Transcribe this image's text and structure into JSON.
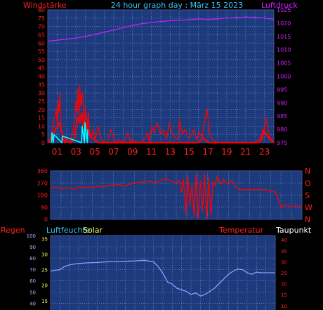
{
  "chart_data": [
    {
      "type": "line",
      "title": "24 hour graph day : März 15 2023",
      "left_axis_label": "Windstärke",
      "right_axis_label": "Luftdruck",
      "left_ticks": [
        0,
        5,
        10,
        15,
        20,
        25,
        30,
        35,
        40,
        45,
        50,
        55,
        60,
        65,
        70,
        75,
        80
      ],
      "right_ticks": [
        975,
        980,
        985,
        990,
        995,
        1000,
        1005,
        1010,
        1015,
        1020,
        1025
      ],
      "left_range": [
        0,
        80
      ],
      "right_range": [
        975,
        1025
      ],
      "x_range": [
        0,
        24
      ],
      "x_ticks": [
        "01",
        "03",
        "05",
        "07",
        "09",
        "11",
        "13",
        "15",
        "17",
        "19",
        "21",
        "23"
      ],
      "x_tick_hours": [
        1,
        3,
        5,
        7,
        9,
        11,
        13,
        15,
        17,
        19,
        21,
        23
      ],
      "grid": true,
      "colors": {
        "background": "#1c3a7c",
        "grid": "#7d92c8",
        "frame": "#4a4f8e",
        "wind": "#ff0000",
        "gust": "#ff0000",
        "calm": "#00ffff",
        "pressure": "#d020ff",
        "left_label": "#ff2020",
        "right_label": "#d020ff",
        "title": "#30c8ff",
        "tick_right": "#d020ff",
        "x_tick": "#ff2020"
      },
      "series": [
        {
          "role": "pressure",
          "axis": "right",
          "x": [
            0,
            1,
            2,
            3,
            4,
            5,
            6,
            7,
            8,
            9,
            10,
            11,
            12,
            13,
            14,
            15,
            16,
            17,
            18,
            19,
            20,
            21,
            22,
            23,
            24
          ],
          "y": [
            1013.2,
            1013.6,
            1014,
            1014.4,
            1015,
            1015.8,
            1016.6,
            1017.4,
            1018.3,
            1019.2,
            1019.8,
            1020.2,
            1020.6,
            1020.9,
            1021.1,
            1021.3,
            1021.6,
            1021.4,
            1021.6,
            1021.9,
            1022.1,
            1022.3,
            1022.2,
            1021.9,
            1021.4
          ]
        },
        {
          "role": "gust",
          "axis": "left",
          "x": [
            0,
            0.3,
            0.5,
            0.7,
            0.9,
            1.0,
            1.1,
            1.2,
            1.3,
            1.4,
            1.5,
            1.6,
            1.8,
            2.0,
            2.2,
            2.4,
            2.6,
            2.8,
            2.9,
            3.0,
            3.1,
            3.2,
            3.3,
            3.4,
            3.5,
            3.6,
            3.7,
            3.8,
            3.9,
            4.0,
            4.1,
            4.2,
            4.3,
            4.4,
            4.5,
            4.6,
            4.8,
            5.0,
            5.2,
            5.4,
            5.6,
            6.0,
            6.3,
            6.5,
            6.7,
            7.0,
            7.2,
            7.5,
            8.0,
            8.3,
            8.5,
            8.8,
            9.0,
            9.5,
            10.0,
            10.3,
            10.6,
            10.8,
            11.0,
            11.3,
            11.6,
            12.0,
            12.3,
            12.6,
            12.9,
            13.2,
            13.5,
            13.8,
            14.0,
            14.3,
            14.6,
            14.9,
            15.2,
            15.5,
            15.8,
            16.1,
            16.4,
            16.6,
            16.9,
            17.2,
            17.5,
            18.0,
            19.0,
            20.0,
            21.0,
            22.0,
            22.5,
            22.8,
            23.0,
            23.2,
            23.4,
            23.6,
            24.0
          ],
          "y": [
            0,
            3,
            8,
            15,
            20,
            12,
            25,
            18,
            30,
            10,
            6,
            2,
            0,
            3,
            0,
            0,
            5,
            12,
            20,
            25,
            18,
            32,
            15,
            35,
            22,
            28,
            30,
            18,
            12,
            22,
            15,
            8,
            18,
            10,
            5,
            3,
            8,
            2,
            6,
            10,
            3,
            0,
            0,
            4,
            8,
            3,
            0,
            2,
            0,
            3,
            6,
            0,
            2,
            0,
            0,
            3,
            6,
            0,
            10,
            6,
            12,
            5,
            8,
            2,
            12,
            6,
            3,
            2,
            14,
            5,
            8,
            3,
            4,
            8,
            2,
            6,
            3,
            12,
            20,
            5,
            2,
            0,
            0,
            0,
            0,
            0,
            0,
            3,
            8,
            15,
            7,
            3,
            0
          ]
        },
        {
          "role": "wind",
          "axis": "left",
          "x": [
            0,
            0.5,
            0.8,
            1.0,
            1.2,
            1.4,
            1.6,
            1.8,
            2.0,
            2.4,
            2.8,
            3.0,
            3.2,
            3.4,
            3.6,
            3.8,
            4.0,
            4.2,
            4.4,
            4.6,
            5.0,
            5.4,
            6.0,
            7.0,
            8.0,
            9.0,
            10.0,
            11.0,
            12.0,
            13.0,
            14.0,
            15.0,
            16.0,
            16.5,
            17.0,
            18.0,
            20.0,
            22.0,
            22.6,
            22.9,
            23.2,
            23.6,
            24.0
          ],
          "y": [
            0,
            3,
            8,
            10,
            12,
            8,
            4,
            0,
            1,
            0,
            2,
            10,
            15,
            12,
            18,
            10,
            12,
            8,
            5,
            3,
            2,
            0,
            0,
            0,
            0,
            0,
            0,
            0,
            0,
            0,
            0,
            0,
            0,
            3,
            0,
            0,
            0,
            0,
            2,
            8,
            5,
            2,
            0
          ]
        },
        {
          "role": "calm",
          "axis": "left",
          "x": [
            0.4,
            0.45,
            0.6,
            0.65,
            1.5,
            1.55,
            3.6,
            3.65,
            3.9,
            3.95,
            4.2,
            4.25
          ],
          "y": [
            0,
            6,
            0,
            5,
            0,
            4,
            0,
            10,
            0,
            12,
            0,
            8
          ]
        }
      ]
    },
    {
      "type": "line",
      "left_ticks": [
        0,
        90,
        180,
        270,
        360
      ],
      "left_tick_labels": [
        "0",
        "90",
        "180",
        "270",
        "360"
      ],
      "left_range": [
        0,
        360
      ],
      "right_labels": [
        "N",
        "W",
        "S",
        "O",
        "N"
      ],
      "x_range": [
        0,
        24
      ],
      "grid": true,
      "colors": {
        "background": "#1c3a7c",
        "grid": "#7d92c8",
        "frame": "#4a4f8e",
        "direction": "#ff0000",
        "tick": "#ff2020",
        "right_label": "#ff2020"
      },
      "series": [
        {
          "role": "direction",
          "x": [
            0,
            0.5,
            1.0,
            1.5,
            2.0,
            2.3,
            2.6,
            3.0,
            3.5,
            4.0,
            4.5,
            5.0,
            5.5,
            6.0,
            6.5,
            7.0,
            7.5,
            8.0,
            8.5,
            9.0,
            9.5,
            10.0,
            10.5,
            11.0,
            11.5,
            12.0,
            12.3,
            12.5,
            12.7,
            12.9,
            13.1,
            13.3,
            13.5,
            13.7,
            13.9,
            14.1,
            14.3,
            14.5,
            14.7,
            14.9,
            15.1,
            15.3,
            15.5,
            15.7,
            15.9,
            16.1,
            16.3,
            16.5,
            16.7,
            17.0,
            17.3,
            17.6,
            18.0,
            18.5,
            19.0,
            19.5,
            20.0,
            20.5,
            21.0,
            21.5,
            22.0,
            22.5,
            23.0,
            23.5,
            24.0
          ],
          "y": [
            230,
            240,
            225,
            235,
            230,
            220,
            240,
            235,
            240,
            235,
            245,
            240,
            250,
            255,
            260,
            245,
            260,
            270,
            275,
            285,
            280,
            270,
            290,
            300,
            285,
            270,
            290,
            200,
            300,
            40,
            320,
            100,
            260,
            20,
            330,
            10,
            290,
            60,
            340,
            0,
            310,
            30,
            280,
            250,
            320,
            290,
            260,
            300,
            270,
            270,
            290,
            250,
            220,
            220,
            220,
            220,
            220,
            220,
            210,
            200,
            90,
            110,
            90,
            100,
            90
          ]
        }
      ]
    },
    {
      "type": "line",
      "left_axis_label": "Regen",
      "hum_label": "Luftfeuchte",
      "solar_label": "Solar",
      "temp_label": "Temperatur",
      "dew_label": "Taupunkt",
      "left_ticks": [
        40,
        50,
        60,
        70,
        80,
        90,
        100
      ],
      "left_range": [
        34,
        100
      ],
      "inner_ticks": [
        15,
        20,
        25,
        30,
        35
      ],
      "inner_range": [
        12,
        36
      ],
      "right_ticks": [
        10,
        15,
        20,
        25,
        30,
        35,
        40
      ],
      "right_range": [
        8,
        42
      ],
      "x_range": [
        0,
        24
      ],
      "grid": true,
      "colors": {
        "background": "#1c3a7c",
        "grid": "#7d92c8",
        "frame": "#4a4f8e",
        "temperature": "#9999ff",
        "regen_label": "#ff2020",
        "hum_label": "#30c8ff",
        "solar_label": "#ffff60",
        "temp_label": "#ff2020",
        "dew_label": "#ffffff",
        "left_tick": "#b0b0ff",
        "inner_tick": "#ffff60",
        "right_tick": "#ff2020"
      },
      "series": [
        {
          "role": "temperature",
          "axis": "inner",
          "x": [
            0,
            0.5,
            1.0,
            1.5,
            2.0,
            2.5,
            3.0,
            4.0,
            5.0,
            6.0,
            7.0,
            8.0,
            9.0,
            10.0,
            11.0,
            11.5,
            12.0,
            12.5,
            13.0,
            13.5,
            14.0,
            14.5,
            15.0,
            15.5,
            16.0,
            16.5,
            17.0,
            17.5,
            18.0,
            18.5,
            19.0,
            19.5,
            20.0,
            20.5,
            21.0,
            21.5,
            22.0,
            22.5,
            23.0,
            24.0
          ],
          "y": [
            24.5,
            24.8,
            25.0,
            26.0,
            26.5,
            26.8,
            27.0,
            27.2,
            27.3,
            27.5,
            27.6,
            27.7,
            27.8,
            28.0,
            27.5,
            26.0,
            23.8,
            21.0,
            20.3,
            19.0,
            18.5,
            18.0,
            17.0,
            17.5,
            16.5,
            17.0,
            18.0,
            19.0,
            20.5,
            22.0,
            23.5,
            24.5,
            25.2,
            25.0,
            24.0,
            23.5,
            24.2,
            24.0,
            24.0,
            24.0
          ]
        }
      ]
    }
  ]
}
